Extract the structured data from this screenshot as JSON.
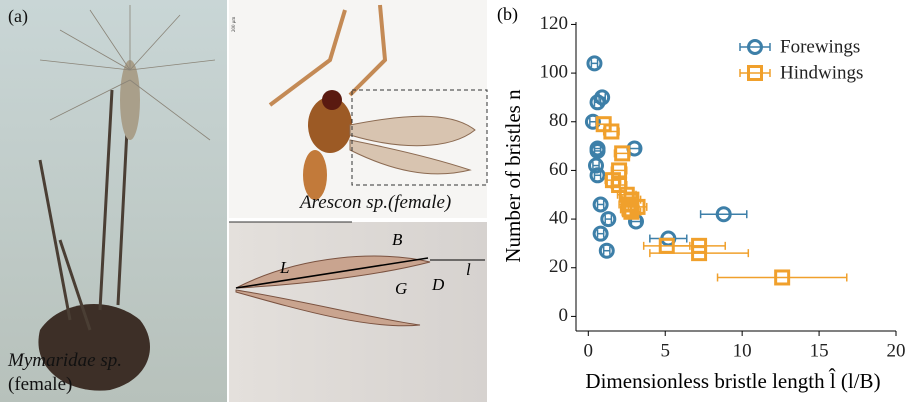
{
  "panel_a": {
    "label": "(a)",
    "left_caption_1": "Mymaridae sp.",
    "left_caption_2": "(female)",
    "top_caption": "Arescon sp.(female)",
    "scale_bar": "200 μm",
    "dim_L": "L",
    "dim_B": "B",
    "dim_G": "G",
    "dim_D": "D",
    "dim_l": "l"
  },
  "chart_data": {
    "type": "scatter",
    "panel_label": "(b)",
    "xlabel": "Dimensionless bristle length l̂ (l/B)",
    "ylabel": "Number of bristles n",
    "xlim": [
      -0.8,
      20
    ],
    "ylim": [
      -6,
      121
    ],
    "xticks": [
      0,
      5,
      10,
      15,
      20
    ],
    "yticks": [
      0,
      20,
      40,
      60,
      80,
      100,
      120
    ],
    "grid": false,
    "legend": "upper right",
    "series": [
      {
        "name": "Forewings",
        "color": "#3d7fa8",
        "marker": "circle",
        "x": [
          0.4,
          0.6,
          0.9,
          0.3,
          0.6,
          0.6,
          0.5,
          0.6,
          3.0,
          0.8,
          1.3,
          3.1,
          0.8,
          1.2,
          5.2,
          8.8
        ],
        "values": [
          104,
          88,
          90,
          80,
          69,
          68,
          62,
          58,
          69,
          46,
          40,
          39,
          34,
          27,
          32,
          42
        ],
        "xerr": [
          0.2,
          0.2,
          0.2,
          0.2,
          0.2,
          0.2,
          0.2,
          0.2,
          0.3,
          0.2,
          0.2,
          0.3,
          0.2,
          0.2,
          1.2,
          1.5
        ]
      },
      {
        "name": "Hindwings",
        "color": "#f0a02c",
        "marker": "square",
        "x": [
          1.0,
          1.5,
          2.2,
          2.0,
          1.6,
          2.0,
          2.5,
          2.8,
          2.6,
          2.7,
          3.2,
          2.8,
          5.1,
          7.2,
          7.2,
          12.6
        ],
        "values": [
          79,
          76,
          67,
          60,
          56,
          54,
          50,
          48,
          46,
          44,
          45,
          43,
          29,
          29,
          26,
          16
        ],
        "xerr": [
          0.4,
          0.5,
          0.5,
          0.5,
          0.5,
          0.5,
          0.6,
          0.6,
          0.6,
          0.6,
          0.6,
          0.6,
          1.5,
          1.7,
          3.2,
          4.2
        ]
      }
    ]
  }
}
